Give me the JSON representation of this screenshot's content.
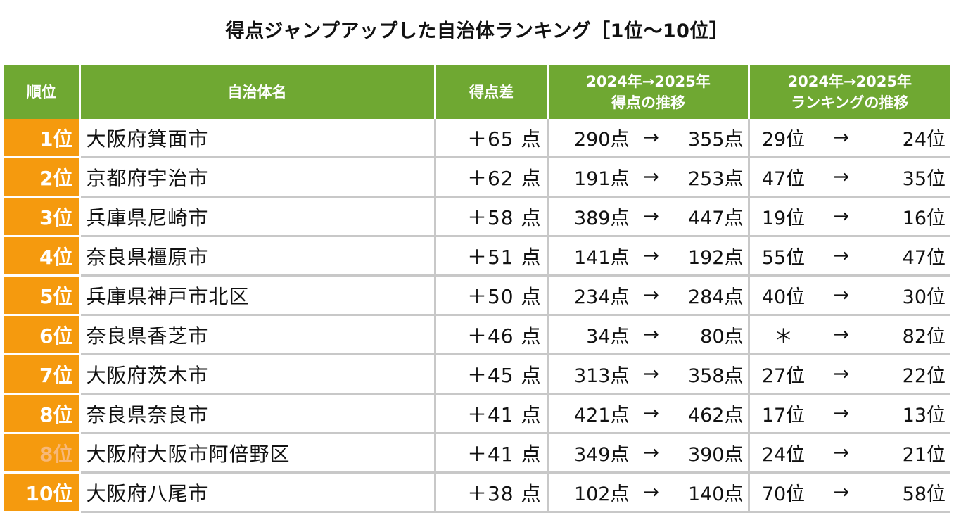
{
  "title": "得点ジャンプアップした自治体ランキング［1位～10位］",
  "colors": {
    "header_bg": "#6fa832",
    "rank_bg": "#f59a0e",
    "header_text": "#ffffff",
    "grid_line": "#c8c8c8"
  },
  "header": {
    "rank": "順位",
    "name": "自治体名",
    "diff": "得点差",
    "score_line1": "2024年→2025年",
    "score_line2": "得点の推移",
    "ranking_line1": "2024年→2025年",
    "ranking_line2": "ランキングの推移"
  },
  "arrow": "→",
  "rows": [
    {
      "rank": "1位",
      "name": "大阪府箕面市",
      "diff": "＋65 点",
      "score_from": "290点",
      "score_to": "355点",
      "rank_from": "29位",
      "rank_to": "24位"
    },
    {
      "rank": "2位",
      "name": "京都府宇治市",
      "diff": "＋62 点",
      "score_from": "191点",
      "score_to": "253点",
      "rank_from": "47位",
      "rank_to": "35位"
    },
    {
      "rank": "3位",
      "name": "兵庫県尼崎市",
      "diff": "＋58 点",
      "score_from": "389点",
      "score_to": "447点",
      "rank_from": "19位",
      "rank_to": "16位"
    },
    {
      "rank": "4位",
      "name": "奈良県橿原市",
      "diff": "＋51 点",
      "score_from": "141点",
      "score_to": "192点",
      "rank_from": "55位",
      "rank_to": "47位"
    },
    {
      "rank": "5位",
      "name": "兵庫県神戸市北区",
      "diff": "＋50 点",
      "score_from": "234点",
      "score_to": "284点",
      "rank_from": "40位",
      "rank_to": "30位"
    },
    {
      "rank": "6位",
      "name": "奈良県香芝市",
      "diff": "＋46 点",
      "score_from": "34点",
      "score_to": "80点",
      "rank_from": "＊",
      "rank_to": "82位"
    },
    {
      "rank": "7位",
      "name": "大阪府茨木市",
      "diff": "＋45 点",
      "score_from": "313点",
      "score_to": "358点",
      "rank_from": "27位",
      "rank_to": "22位"
    },
    {
      "rank": "8位",
      "name": "奈良県奈良市",
      "diff": "＋41 点",
      "score_from": "421点",
      "score_to": "462点",
      "rank_from": "17位",
      "rank_to": "13位"
    },
    {
      "rank": "8位",
      "name": "大阪府大阪市阿倍野区",
      "diff": "＋41 点",
      "score_from": "349点",
      "score_to": "390点",
      "rank_from": "24位",
      "rank_to": "21位"
    },
    {
      "rank": "10位",
      "name": "大阪府八尾市",
      "diff": "＋38 点",
      "score_from": "102点",
      "score_to": "140点",
      "rank_from": "70位",
      "rank_to": "58位"
    }
  ]
}
